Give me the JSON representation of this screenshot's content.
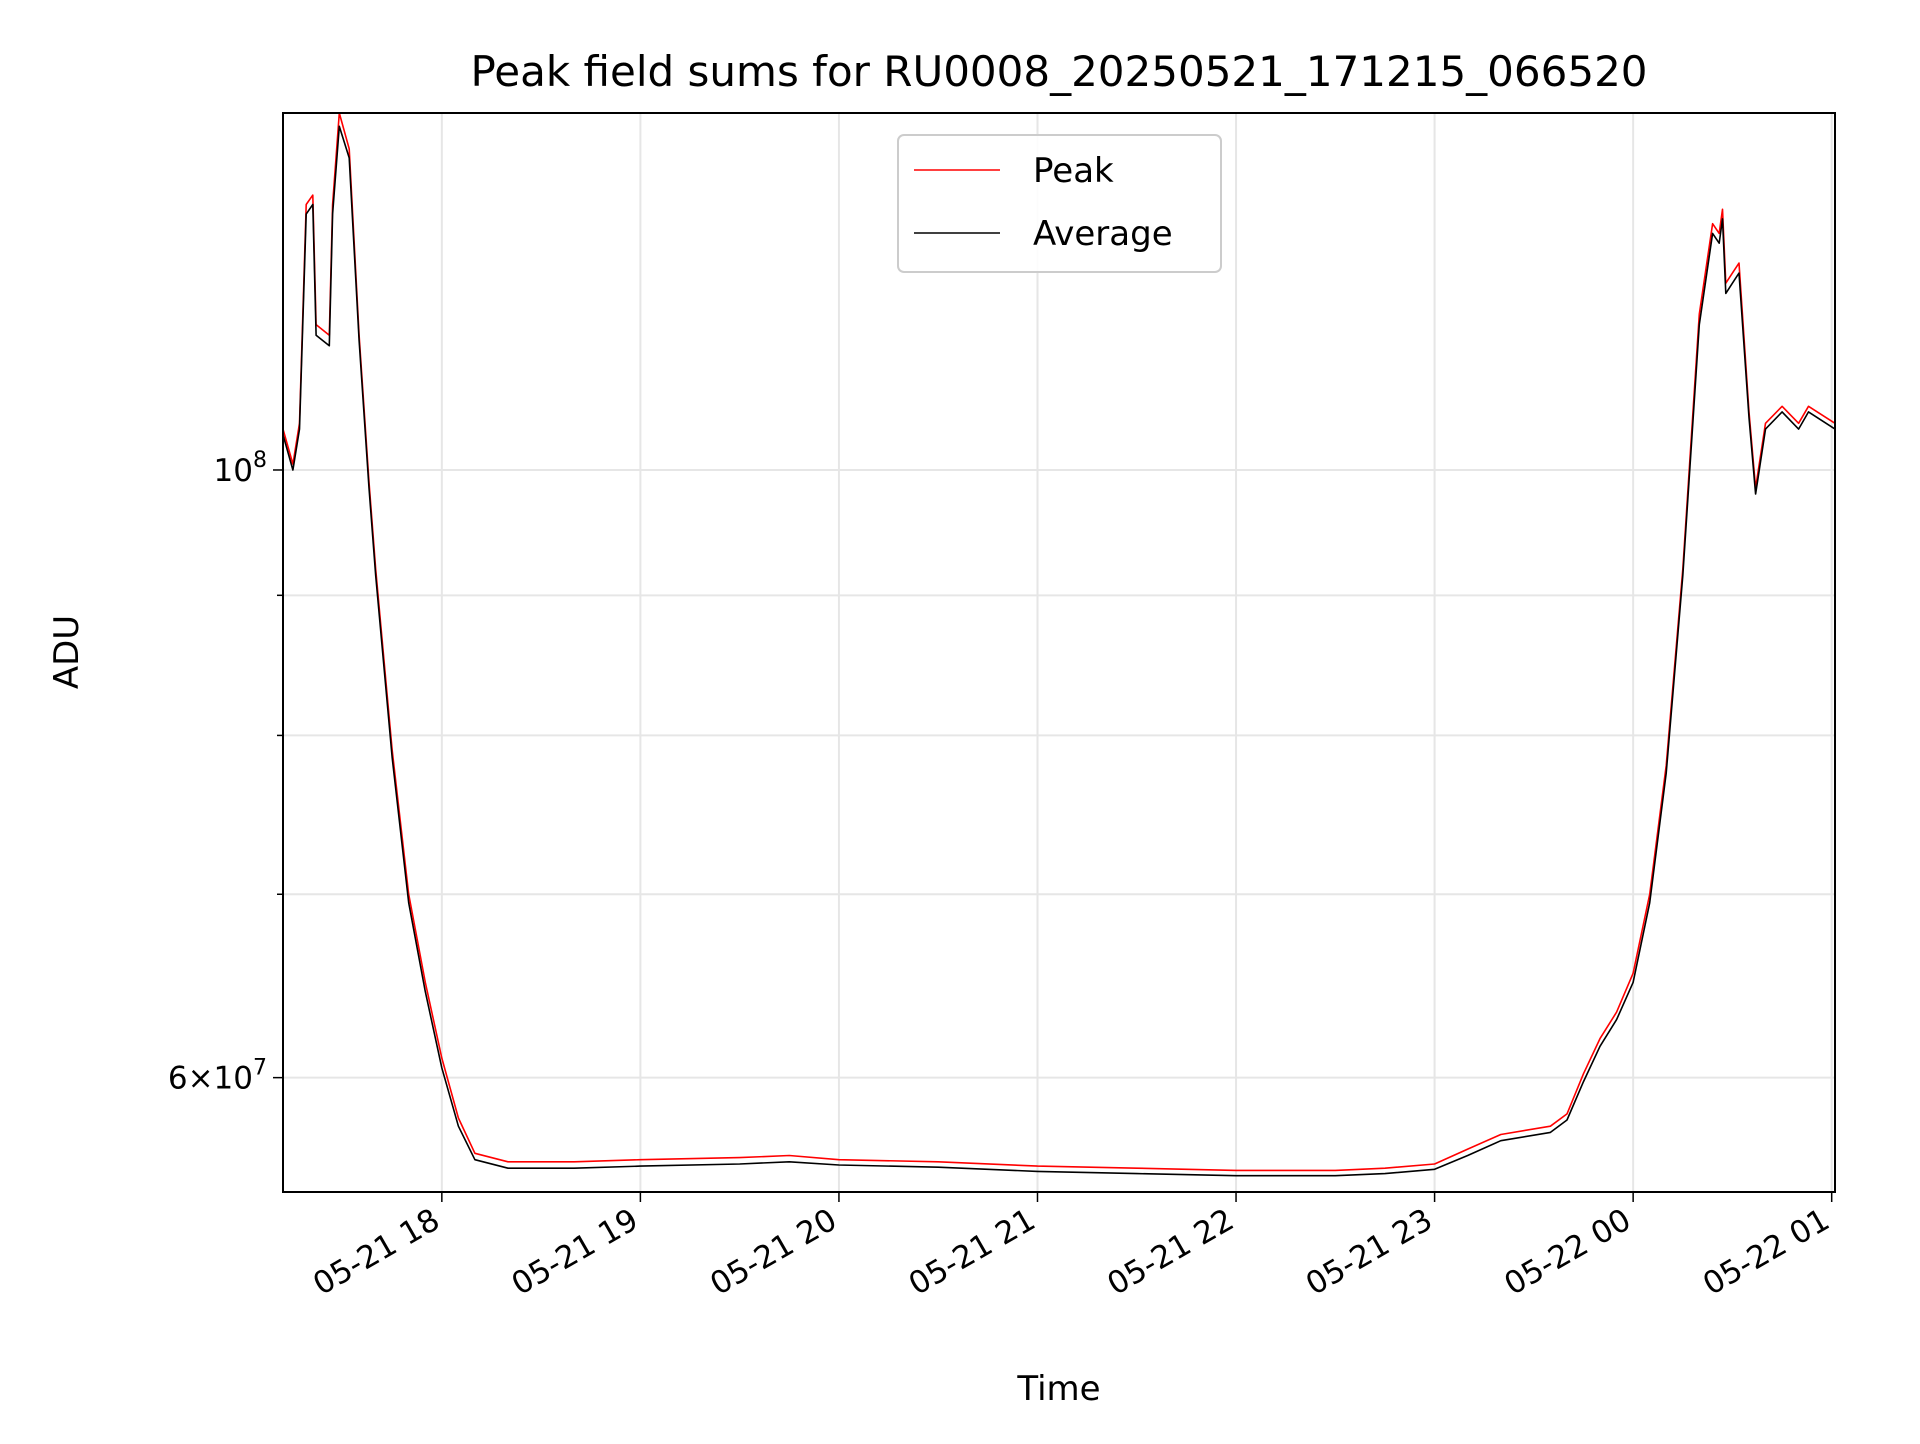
{
  "chart_data": {
    "type": "line",
    "title": "Peak field sums for RU0008_20250521_171215_066520",
    "xlabel": "Time",
    "ylabel": "ADU",
    "y_scale": "log",
    "grid": true,
    "legend_position": "top-center",
    "x_tick_labels": [
      "05-21 18",
      "05-21 19",
      "05-21 20",
      "05-21 21",
      "05-21 22",
      "05-21 23",
      "05-22 00",
      "05-22 01"
    ],
    "x_tick_times": [
      "2025-05-21 18:00",
      "2025-05-21 19:00",
      "2025-05-21 20:00",
      "2025-05-21 21:00",
      "2025-05-21 22:00",
      "2025-05-21 23:00",
      "2025-05-22 00:00",
      "2025-05-22 01:00"
    ],
    "xlim": [
      "2025-05-21 17:12",
      "2025-05-22 01:01"
    ],
    "y_tick_labels": [
      {
        "value": 100000000,
        "label": "10^8"
      },
      {
        "value": 60000000,
        "label": "6×10^7"
      }
    ],
    "ylim": [
      54500000,
      135000000
    ],
    "series": [
      {
        "name": "Peak",
        "color": "#ff0000",
        "points": [
          [
            "2025-05-21 17:12",
            103500000
          ],
          [
            "2025-05-21 17:15",
            100500000
          ],
          [
            "2025-05-21 17:17",
            104000000
          ],
          [
            "2025-05-21 17:19",
            125000000
          ],
          [
            "2025-05-21 17:21",
            126000000
          ],
          [
            "2025-05-21 17:22",
            113000000
          ],
          [
            "2025-05-21 17:26",
            112000000
          ],
          [
            "2025-05-21 17:27",
            125000000
          ],
          [
            "2025-05-21 17:29",
            135000000
          ],
          [
            "2025-05-21 17:32",
            131000000
          ],
          [
            "2025-05-21 17:35",
            112000000
          ],
          [
            "2025-05-21 17:38",
            99000000
          ],
          [
            "2025-05-21 17:40",
            92000000
          ],
          [
            "2025-05-21 17:45",
            79000000
          ],
          [
            "2025-05-21 17:50",
            70000000
          ],
          [
            "2025-05-21 17:55",
            65000000
          ],
          [
            "2025-05-21 18:00",
            61000000
          ],
          [
            "2025-05-21 18:05",
            58000000
          ],
          [
            "2025-05-21 18:10",
            56300000
          ],
          [
            "2025-05-21 18:20",
            55900000
          ],
          [
            "2025-05-21 18:40",
            55900000
          ],
          [
            "2025-05-21 19:00",
            56000000
          ],
          [
            "2025-05-21 19:30",
            56100000
          ],
          [
            "2025-05-21 19:45",
            56200000
          ],
          [
            "2025-05-21 20:00",
            56000000
          ],
          [
            "2025-05-21 20:30",
            55900000
          ],
          [
            "2025-05-21 21:00",
            55700000
          ],
          [
            "2025-05-21 21:30",
            55600000
          ],
          [
            "2025-05-21 22:00",
            55500000
          ],
          [
            "2025-05-21 22:30",
            55500000
          ],
          [
            "2025-05-21 22:45",
            55600000
          ],
          [
            "2025-05-21 23:00",
            55800000
          ],
          [
            "2025-05-21 23:10",
            56500000
          ],
          [
            "2025-05-21 23:20",
            57200000
          ],
          [
            "2025-05-21 23:35",
            57600000
          ],
          [
            "2025-05-21 23:40",
            58200000
          ],
          [
            "2025-05-21 23:45",
            60200000
          ],
          [
            "2025-05-21 23:50",
            62000000
          ],
          [
            "2025-05-21 23:55",
            63400000
          ],
          [
            "2025-05-22 00:00",
            65500000
          ],
          [
            "2025-05-22 00:05",
            70000000
          ],
          [
            "2025-05-22 00:10",
            78000000
          ],
          [
            "2025-05-22 00:15",
            92000000
          ],
          [
            "2025-05-22 00:20",
            114000000
          ],
          [
            "2025-05-22 00:24",
            123000000
          ],
          [
            "2025-05-22 00:26",
            122000000
          ],
          [
            "2025-05-22 00:27",
            124500000
          ],
          [
            "2025-05-22 00:28",
            117000000
          ],
          [
            "2025-05-22 00:30",
            118000000
          ],
          [
            "2025-05-22 00:32",
            119000000
          ],
          [
            "2025-05-22 00:35",
            105000000
          ],
          [
            "2025-05-22 00:37",
            98500000
          ],
          [
            "2025-05-22 00:40",
            104000000
          ],
          [
            "2025-05-22 00:45",
            105500000
          ],
          [
            "2025-05-22 00:50",
            104000000
          ],
          [
            "2025-05-22 00:53",
            105500000
          ],
          [
            "2025-05-22 01:01",
            104000000
          ]
        ]
      },
      {
        "name": "Average",
        "color": "#000000",
        "points": [
          [
            "2025-05-21 17:12",
            103000000
          ],
          [
            "2025-05-21 17:15",
            100000000
          ],
          [
            "2025-05-21 17:17",
            103500000
          ],
          [
            "2025-05-21 17:19",
            124000000
          ],
          [
            "2025-05-21 17:21",
            125000000
          ],
          [
            "2025-05-21 17:22",
            112000000
          ],
          [
            "2025-05-21 17:26",
            111000000
          ],
          [
            "2025-05-21 17:27",
            124000000
          ],
          [
            "2025-05-21 17:29",
            133500000
          ],
          [
            "2025-05-21 17:32",
            130000000
          ],
          [
            "2025-05-21 17:35",
            111500000
          ],
          [
            "2025-05-21 17:38",
            98500000
          ],
          [
            "2025-05-21 17:40",
            91500000
          ],
          [
            "2025-05-21 17:45",
            78500000
          ],
          [
            "2025-05-21 17:50",
            69500000
          ],
          [
            "2025-05-21 17:55",
            64500000
          ],
          [
            "2025-05-21 18:00",
            60500000
          ],
          [
            "2025-05-21 18:05",
            57600000
          ],
          [
            "2025-05-21 18:10",
            56000000
          ],
          [
            "2025-05-21 18:20",
            55600000
          ],
          [
            "2025-05-21 18:40",
            55600000
          ],
          [
            "2025-05-21 19:00",
            55700000
          ],
          [
            "2025-05-21 19:30",
            55800000
          ],
          [
            "2025-05-21 19:45",
            55900000
          ],
          [
            "2025-05-21 20:00",
            55750000
          ],
          [
            "2025-05-21 20:30",
            55650000
          ],
          [
            "2025-05-21 21:00",
            55450000
          ],
          [
            "2025-05-21 21:30",
            55350000
          ],
          [
            "2025-05-21 22:00",
            55250000
          ],
          [
            "2025-05-21 22:30",
            55250000
          ],
          [
            "2025-05-21 22:45",
            55350000
          ],
          [
            "2025-05-21 23:00",
            55550000
          ],
          [
            "2025-05-21 23:10",
            56200000
          ],
          [
            "2025-05-21 23:20",
            56900000
          ],
          [
            "2025-05-21 23:35",
            57300000
          ],
          [
            "2025-05-21 23:40",
            57900000
          ],
          [
            "2025-05-21 23:45",
            59800000
          ],
          [
            "2025-05-21 23:50",
            61600000
          ],
          [
            "2025-05-21 23:55",
            63000000
          ],
          [
            "2025-05-22 00:00",
            65000000
          ],
          [
            "2025-05-22 00:05",
            69500000
          ],
          [
            "2025-05-22 00:10",
            77500000
          ],
          [
            "2025-05-22 00:15",
            91500000
          ],
          [
            "2025-05-22 00:20",
            113000000
          ],
          [
            "2025-05-22 00:24",
            122000000
          ],
          [
            "2025-05-22 00:26",
            121000000
          ],
          [
            "2025-05-22 00:27",
            123500000
          ],
          [
            "2025-05-22 00:28",
            116000000
          ],
          [
            "2025-05-22 00:30",
            117000000
          ],
          [
            "2025-05-22 00:32",
            118000000
          ],
          [
            "2025-05-22 00:35",
            104500000
          ],
          [
            "2025-05-22 00:37",
            98000000
          ],
          [
            "2025-05-22 00:40",
            103500000
          ],
          [
            "2025-05-22 00:45",
            105000000
          ],
          [
            "2025-05-22 00:50",
            103500000
          ],
          [
            "2025-05-22 00:53",
            105000000
          ],
          [
            "2025-05-22 01:01",
            103500000
          ]
        ]
      }
    ]
  }
}
